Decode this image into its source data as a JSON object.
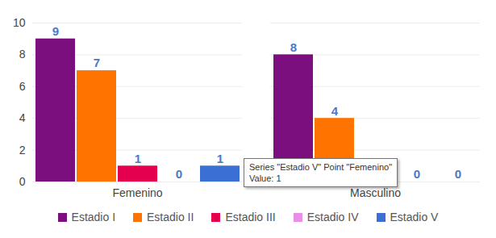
{
  "chart_data": {
    "type": "bar",
    "categories": [
      "Femenino",
      "Masculino"
    ],
    "series": [
      {
        "name": "Estadio I",
        "color": "#7b0f7e",
        "values": [
          9,
          8
        ]
      },
      {
        "name": "Estadio II",
        "color": "#ff7300",
        "values": [
          7,
          4
        ]
      },
      {
        "name": "Estadio III",
        "color": "#e5004f",
        "values": [
          1,
          0
        ]
      },
      {
        "name": "Estadio IV",
        "color": "#e88ee8",
        "values": [
          0,
          0
        ]
      },
      {
        "name": "Estadio V",
        "color": "#3b6fd4",
        "values": [
          1,
          0
        ]
      }
    ],
    "ylim": [
      0,
      10
    ],
    "yticks": [
      0,
      2,
      4,
      6,
      8,
      10
    ],
    "grid": true,
    "data_labels": true,
    "legend": "bottom",
    "annotations": [
      {
        "lines": [
          "Series \"Estadio V\" Point \"Femenino\"",
          "Value: 1"
        ]
      }
    ]
  }
}
